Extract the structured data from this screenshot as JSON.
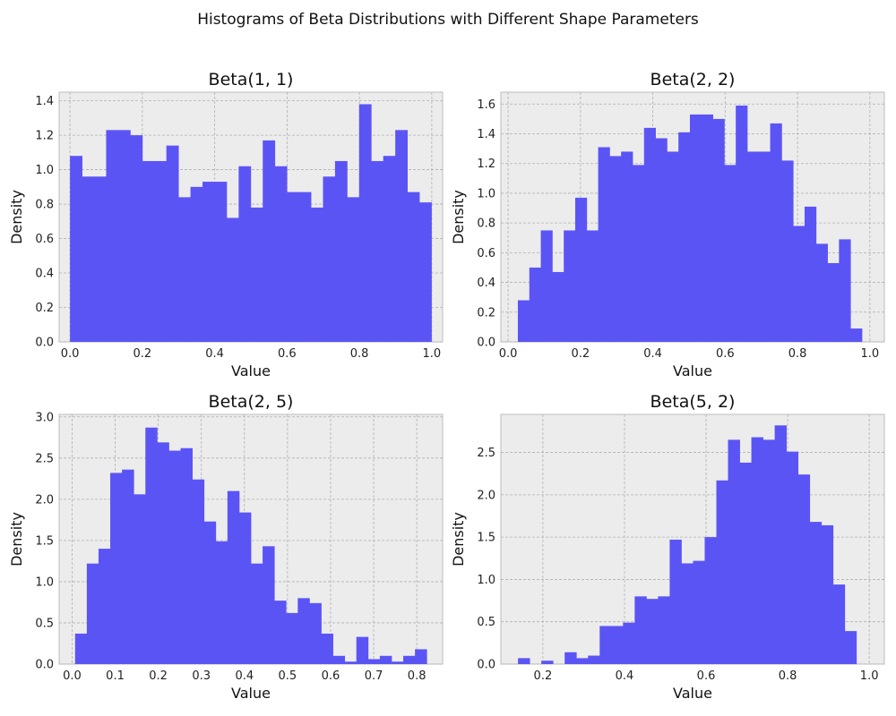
{
  "suptitle": "Histograms of Beta Distributions with Different Shape Parameters",
  "colors": {
    "bar": "#5b54f5",
    "background": "#ececec",
    "grid": "#b0b0b0"
  },
  "chart_data": [
    {
      "type": "bar",
      "title": "Beta(1, 1)",
      "xlabel": "Value",
      "ylabel": "Density",
      "grid": true,
      "xlim": [
        -0.03,
        1.03
      ],
      "ylim": [
        0,
        1.45
      ],
      "xticks": [
        0.0,
        0.2,
        0.4,
        0.6,
        0.8,
        1.0
      ],
      "xtick_labels": [
        "0.0",
        "0.2",
        "0.4",
        "0.6",
        "0.8",
        "1.0"
      ],
      "yticks": [
        0.0,
        0.2,
        0.4,
        0.6,
        0.8,
        1.0,
        1.2,
        1.4
      ],
      "ytick_labels": [
        "0.0",
        "0.2",
        "0.4",
        "0.6",
        "0.8",
        "1.0",
        "1.2",
        "1.4"
      ],
      "bin_start": 0.0,
      "bin_width": 0.0333,
      "values": [
        1.08,
        0.96,
        0.96,
        1.23,
        1.23,
        1.2,
        1.05,
        1.05,
        1.14,
        0.84,
        0.9,
        0.93,
        0.93,
        0.72,
        1.02,
        0.78,
        1.17,
        1.02,
        0.87,
        0.87,
        0.78,
        0.96,
        1.05,
        0.84,
        1.38,
        1.05,
        1.08,
        1.23,
        0.87,
        0.81
      ]
    },
    {
      "type": "bar",
      "title": "Beta(2, 2)",
      "xlabel": "Value",
      "ylabel": "Density",
      "grid": true,
      "xlim": [
        -0.02,
        1.04
      ],
      "ylim": [
        0,
        1.68
      ],
      "xticks": [
        0.0,
        0.2,
        0.4,
        0.6,
        0.8,
        1.0
      ],
      "xtick_labels": [
        "0.0",
        "0.2",
        "0.4",
        "0.6",
        "0.8",
        "1.0"
      ],
      "yticks": [
        0.0,
        0.2,
        0.4,
        0.6,
        0.8,
        1.0,
        1.2,
        1.4,
        1.6
      ],
      "ytick_labels": [
        "0.0",
        "0.2",
        "0.4",
        "0.6",
        "0.8",
        "1.0",
        "1.2",
        "1.4",
        "1.6"
      ],
      "bin_start": 0.027,
      "bin_width": 0.0317,
      "values": [
        0.28,
        0.5,
        0.75,
        0.47,
        0.75,
        0.97,
        0.75,
        1.31,
        1.25,
        1.28,
        1.19,
        1.44,
        1.37,
        1.28,
        1.41,
        1.53,
        1.53,
        1.5,
        1.19,
        1.59,
        1.28,
        1.28,
        1.47,
        1.22,
        0.78,
        0.91,
        0.66,
        0.53,
        0.69,
        0.09
      ]
    },
    {
      "type": "bar",
      "title": "Beta(2, 5)",
      "xlabel": "Value",
      "ylabel": "Density",
      "grid": true,
      "xlim": [
        -0.03,
        0.86
      ],
      "ylim": [
        0,
        3.03
      ],
      "xticks": [
        0.0,
        0.1,
        0.2,
        0.3,
        0.4,
        0.5,
        0.6,
        0.7,
        0.8
      ],
      "xtick_labels": [
        "0.0",
        "0.1",
        "0.2",
        "0.3",
        "0.4",
        "0.5",
        "0.6",
        "0.7",
        "0.8"
      ],
      "yticks": [
        0.0,
        0.5,
        1.0,
        1.5,
        2.0,
        2.5,
        3.0
      ],
      "ytick_labels": [
        "0.0",
        "0.5",
        "1.0",
        "1.5",
        "2.0",
        "2.5",
        "3.0"
      ],
      "bin_start": 0.007,
      "bin_width": 0.0272,
      "values": [
        0.37,
        1.22,
        1.4,
        2.32,
        2.36,
        2.06,
        2.87,
        2.69,
        2.59,
        2.62,
        2.24,
        1.73,
        1.49,
        2.1,
        1.84,
        1.22,
        1.43,
        0.77,
        0.62,
        0.8,
        0.74,
        0.37,
        0.1,
        0.03,
        0.33,
        0.06,
        0.1,
        0.03,
        0.1,
        0.18
      ]
    },
    {
      "type": "bar",
      "title": "Beta(5, 2)",
      "xlabel": "Value",
      "ylabel": "Density",
      "grid": true,
      "xlim": [
        0.097,
        1.037
      ],
      "ylim": [
        0,
        2.95
      ],
      "xticks": [
        0.2,
        0.4,
        0.6,
        0.8,
        1.0
      ],
      "xtick_labels": [
        "0.2",
        "0.4",
        "0.6",
        "0.8",
        "1.0"
      ],
      "yticks": [
        0.0,
        0.5,
        1.0,
        1.5,
        2.0,
        2.5
      ],
      "ytick_labels": [
        "0.0",
        "0.5",
        "1.0",
        "1.5",
        "2.0",
        "2.5"
      ],
      "bin_start": 0.139,
      "bin_width": 0.0286,
      "values": [
        0.07,
        0.0,
        0.04,
        0.0,
        0.14,
        0.07,
        0.1,
        0.45,
        0.45,
        0.49,
        0.8,
        0.77,
        0.8,
        1.47,
        1.19,
        1.22,
        1.5,
        2.17,
        2.65,
        2.38,
        2.68,
        2.65,
        2.82,
        2.51,
        2.24,
        1.68,
        1.64,
        0.94,
        0.39
      ]
    }
  ]
}
